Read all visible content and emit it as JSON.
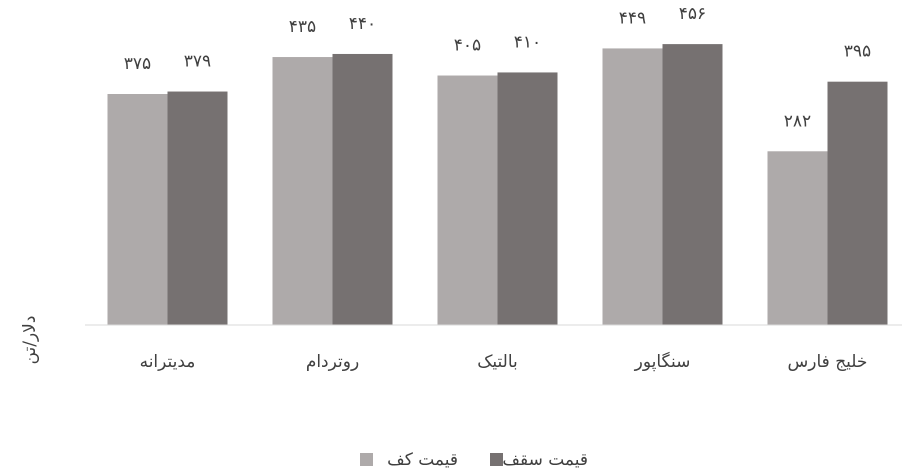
{
  "chart_data": {
    "type": "bar",
    "categories": [
      "مدیترانه",
      "روتردام",
      "بالتیک",
      "سنگاپور",
      "خلیج فارس"
    ],
    "series": [
      {
        "name": "قیمت کف",
        "color": "#aeaaaa",
        "values": [
          375,
          435,
          405,
          449,
          282
        ],
        "value_labels": [
          "۳۷۵",
          "۴۳۵",
          "۴۰۵",
          "۴۴۹",
          "۲۸۲"
        ]
      },
      {
        "name": "قیمت سقف",
        "color": "#767171",
        "values": [
          379,
          440,
          410,
          456,
          395
        ],
        "value_labels": [
          "۳۷۹",
          "۴۴۰",
          "۴۱۰",
          "۴۵۶",
          "۳۹۵"
        ]
      }
    ],
    "ylabel": "دلار/تن",
    "ylim": [
      0,
      500
    ],
    "legend": "bottom"
  }
}
